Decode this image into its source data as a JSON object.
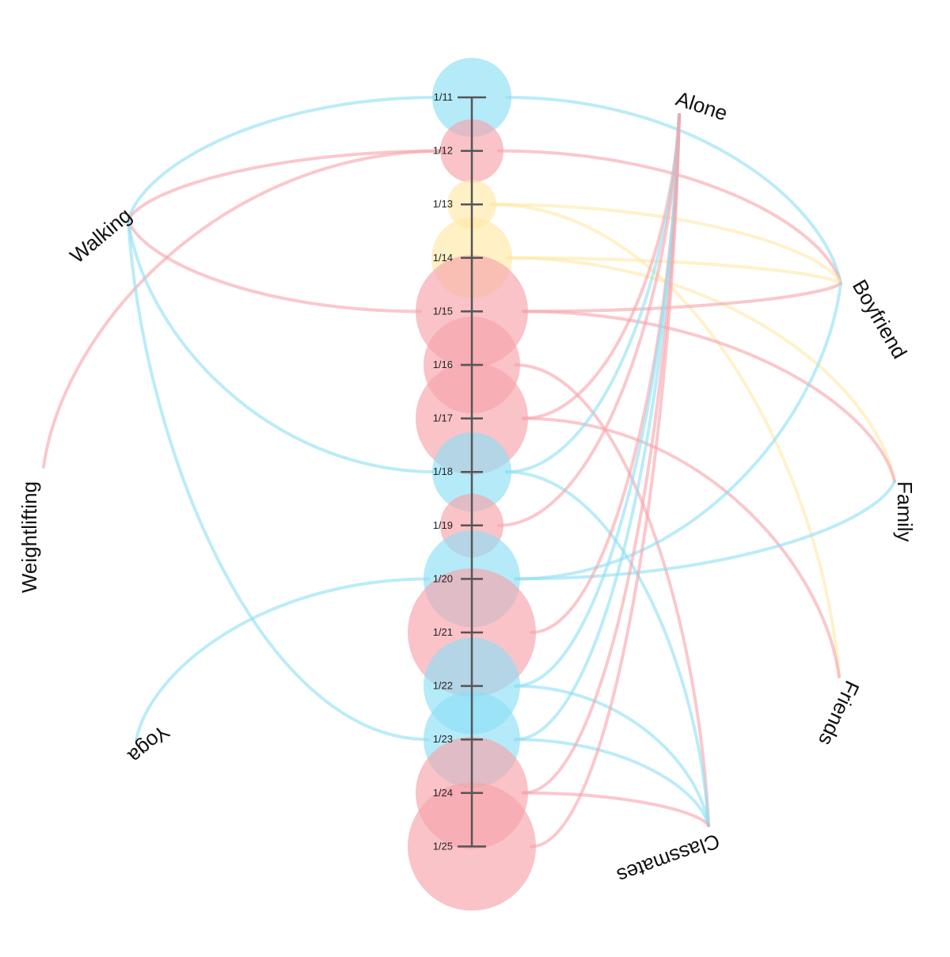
{
  "colors": {
    "blue": "#8ddff4",
    "pink": "#f6a3aa",
    "yellow": "#ffe8a6",
    "axis": "#555555"
  },
  "dates": [
    {
      "label": "1/11",
      "size": 50,
      "color": "blue"
    },
    {
      "label": "1/12",
      "size": 40,
      "color": "pink"
    },
    {
      "label": "1/13",
      "size": 31,
      "color": "yellow"
    },
    {
      "label": "1/14",
      "size": 51,
      "color": "yellow"
    },
    {
      "label": "1/15",
      "size": 71,
      "color": "pink"
    },
    {
      "label": "1/16",
      "size": 61,
      "color": "pink"
    },
    {
      "label": "1/17",
      "size": 71,
      "color": "pink"
    },
    {
      "label": "1/18",
      "size": 50,
      "color": "blue"
    },
    {
      "label": "1/19",
      "size": 40,
      "color": "pink"
    },
    {
      "label": "1/20",
      "size": 61,
      "color": "blue"
    },
    {
      "label": "1/21",
      "size": 81,
      "color": "pink"
    },
    {
      "label": "1/22",
      "size": 61,
      "color": "blue"
    },
    {
      "label": "1/23",
      "size": 61,
      "color": "blue"
    },
    {
      "label": "1/24",
      "size": 71,
      "color": "pink"
    },
    {
      "label": "1/25",
      "size": 81,
      "color": "pink"
    }
  ],
  "activities": [
    {
      "id": "walking",
      "label": "Walking"
    },
    {
      "id": "weightlifting",
      "label": "Weightlifting"
    },
    {
      "id": "yoga",
      "label": "Yoga"
    }
  ],
  "companions": [
    {
      "id": "alone",
      "label": "Alone"
    },
    {
      "id": "boyfriend",
      "label": "Boyfriend"
    },
    {
      "id": "family",
      "label": "Family"
    },
    {
      "id": "friends",
      "label": "Friends"
    },
    {
      "id": "classmates",
      "label": "Classmates"
    }
  ],
  "activity_links": [
    {
      "date": "1/11",
      "to": "walking",
      "color": "blue"
    },
    {
      "date": "1/12",
      "to": "walking",
      "color": "pink"
    },
    {
      "date": "1/12",
      "to": "weightlifting",
      "color": "pink"
    },
    {
      "date": "1/15",
      "to": "walking",
      "color": "pink"
    },
    {
      "date": "1/18",
      "to": "walking",
      "color": "blue"
    },
    {
      "date": "1/20",
      "to": "yoga",
      "color": "blue"
    },
    {
      "date": "1/23",
      "to": "walking",
      "color": "blue"
    }
  ],
  "companion_links": [
    {
      "date": "1/11",
      "to": "boyfriend",
      "color": "blue"
    },
    {
      "date": "1/12",
      "to": "boyfriend",
      "color": "pink"
    },
    {
      "date": "1/13",
      "to": "boyfriend",
      "color": "yellow"
    },
    {
      "date": "1/13",
      "to": "friends",
      "color": "yellow"
    },
    {
      "date": "1/14",
      "to": "boyfriend",
      "color": "yellow"
    },
    {
      "date": "1/14",
      "to": "family",
      "color": "yellow"
    },
    {
      "date": "1/15",
      "to": "boyfriend",
      "color": "pink"
    },
    {
      "date": "1/15",
      "to": "family",
      "color": "pink"
    },
    {
      "date": "1/16",
      "to": "classmates",
      "color": "pink"
    },
    {
      "date": "1/17",
      "to": "alone",
      "color": "pink"
    },
    {
      "date": "1/17",
      "to": "friends",
      "color": "pink"
    },
    {
      "date": "1/18",
      "to": "alone",
      "color": "blue"
    },
    {
      "date": "1/18",
      "to": "classmates",
      "color": "blue"
    },
    {
      "date": "1/19",
      "to": "alone",
      "color": "pink"
    },
    {
      "date": "1/20",
      "to": "boyfriend",
      "color": "blue"
    },
    {
      "date": "1/20",
      "to": "family",
      "color": "blue"
    },
    {
      "date": "1/21",
      "to": "alone",
      "color": "pink"
    },
    {
      "date": "1/22",
      "to": "alone",
      "color": "blue"
    },
    {
      "date": "1/22",
      "to": "classmates",
      "color": "blue"
    },
    {
      "date": "1/23",
      "to": "alone",
      "color": "blue"
    },
    {
      "date": "1/23",
      "to": "classmates",
      "color": "blue"
    },
    {
      "date": "1/24",
      "to": "alone",
      "color": "pink"
    },
    {
      "date": "1/24",
      "to": "classmates",
      "color": "pink"
    },
    {
      "date": "1/25",
      "to": "alone",
      "color": "pink"
    }
  ]
}
